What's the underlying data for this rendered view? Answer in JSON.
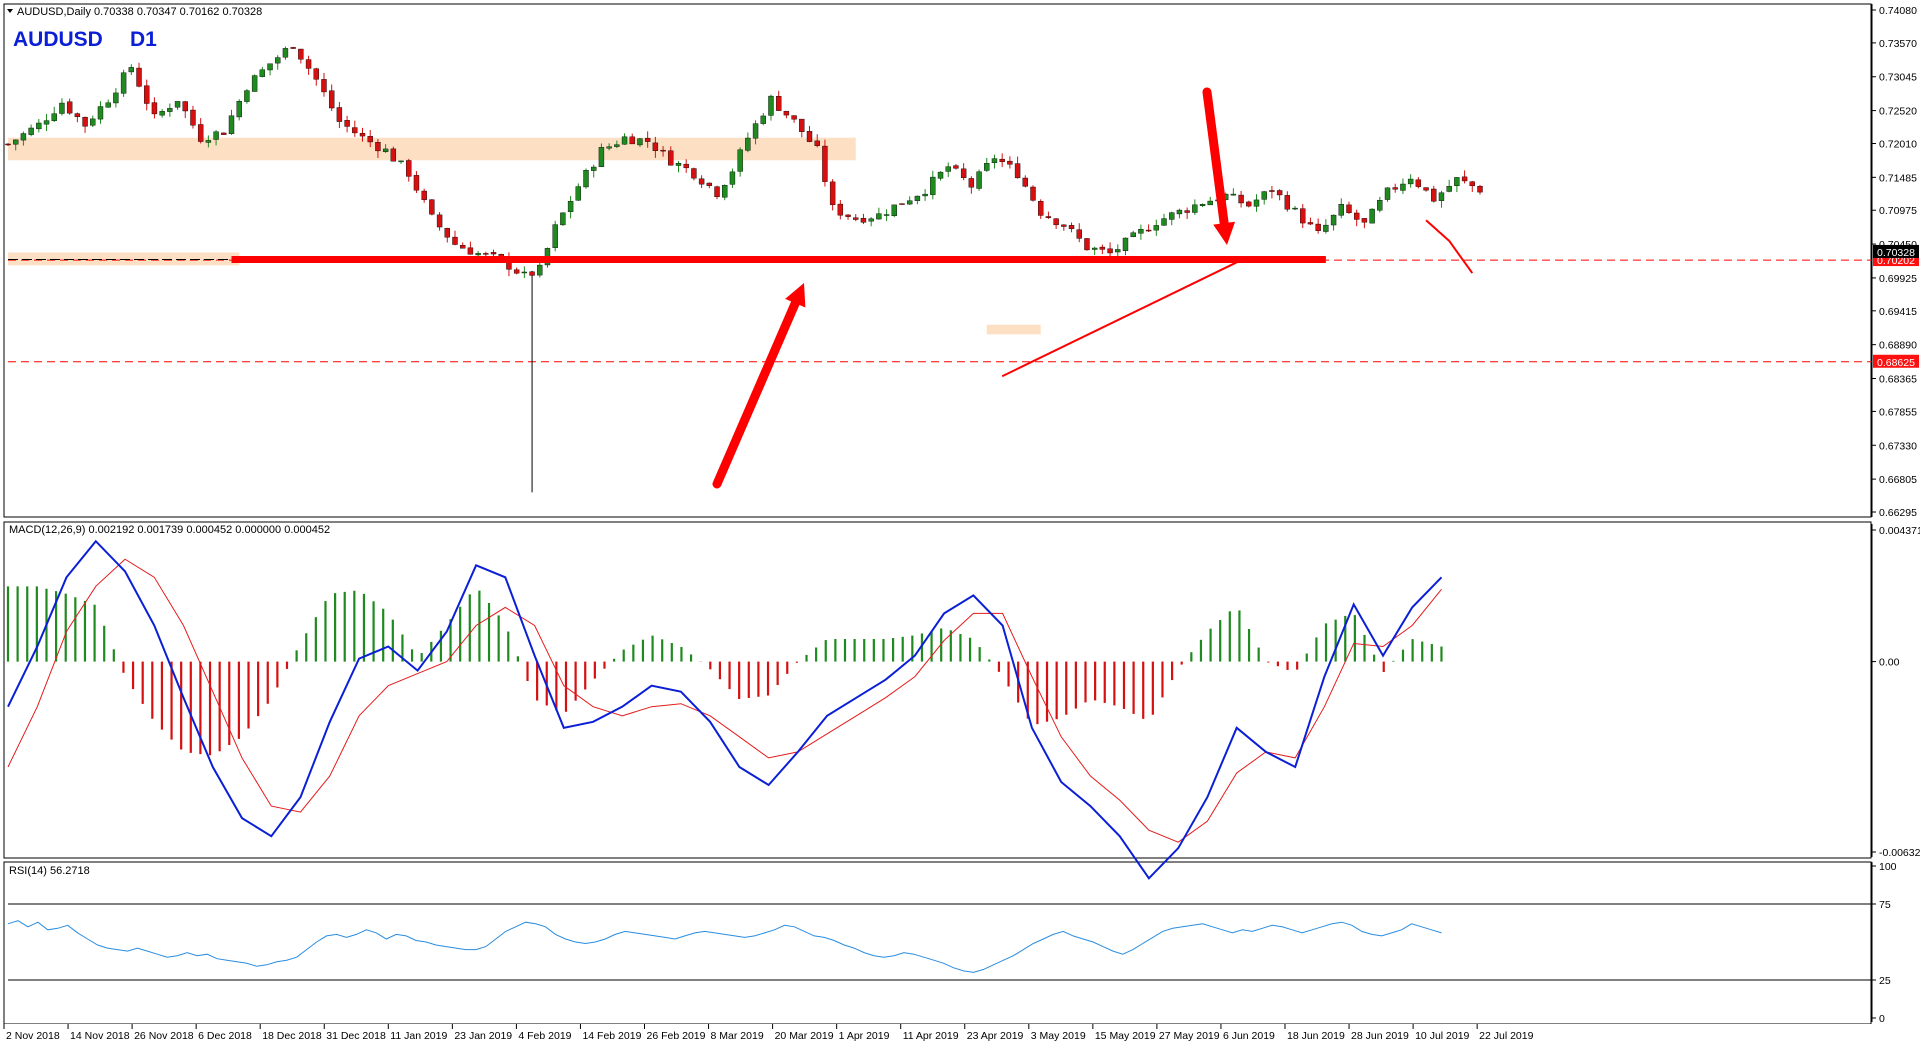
{
  "window": {
    "header": "AUDUSD,Daily  0.70338 0.70347 0.70162 0.70328",
    "symbol": "AUDUSD",
    "timeframe": "D1"
  },
  "colors": {
    "bull": "#1f8a1f",
    "bear": "#d61010",
    "macd_line": "#0a1fd6",
    "signal_line": "#e41b1b",
    "rsi_line": "#2a8de0",
    "zone": "#fde0c4",
    "level": "#ff0000"
  },
  "chart_data": [
    {
      "type": "candlestick",
      "title": "AUDUSD,Daily  0.70338 0.70347 0.70162 0.70328",
      "ylim": [
        0.66295,
        0.7408
      ],
      "y_ticks": [
        "0.74080",
        "0.73570",
        "0.73045",
        "0.72520",
        "0.72010",
        "0.71485",
        "0.70975",
        "0.70450",
        "0.69925",
        "0.69415",
        "0.68890",
        "0.68365",
        "0.67855",
        "0.67330",
        "0.66805",
        "0.66295"
      ],
      "current_price": "0.70328",
      "price_labels": [
        {
          "value": 0.70202,
          "text": "0.70202"
        },
        {
          "value": 0.68625,
          "text": "0.68625"
        }
      ],
      "x_ticks": [
        "2 Nov 2018",
        "14 Nov 2018",
        "26 Nov 2018",
        "6 Dec 2018",
        "18 Dec 2018",
        "31 Dec 2018",
        "11 Jan 2019",
        "23 Jan 2019",
        "4 Feb 2019",
        "14 Feb 2019",
        "26 Feb 2019",
        "8 Mar 2019",
        "20 Mar 2019",
        "1 Apr 2019",
        "11 Apr 2019",
        "23 Apr 2019",
        "3 May 2019",
        "15 May 2019",
        "27 May 2019",
        "6 Jun 2019",
        "18 Jun 2019",
        "28 Jun 2019",
        "10 Jul 2019",
        "22 Jul 2019"
      ],
      "x_range": [
        0,
        191
      ],
      "guide_points": [
        [
          0,
          0.72
        ],
        [
          4,
          0.723
        ],
        [
          7,
          0.7265
        ],
        [
          10,
          0.723
        ],
        [
          13,
          0.727
        ],
        [
          16,
          0.732
        ],
        [
          19,
          0.724
        ],
        [
          22,
          0.727
        ],
        [
          25,
          0.721
        ],
        [
          28,
          0.722
        ],
        [
          31,
          0.729
        ],
        [
          34,
          0.7325
        ],
        [
          37,
          0.7355
        ],
        [
          40,
          0.73
        ],
        [
          43,
          0.7235
        ],
        [
          46,
          0.721
        ],
        [
          49,
          0.719
        ],
        [
          52,
          0.7155
        ],
        [
          55,
          0.7085
        ],
        [
          58,
          0.7045
        ],
        [
          61,
          0.703
        ],
        [
          64,
          0.702
        ],
        [
          67,
          0.6995
        ],
        [
          69,
          0.7005
        ],
        [
          71,
          0.707
        ],
        [
          74,
          0.7135
        ],
        [
          77,
          0.719
        ],
        [
          80,
          0.721
        ],
        [
          83,
          0.7205
        ],
        [
          86,
          0.7175
        ],
        [
          89,
          0.7155
        ],
        [
          92,
          0.7125
        ],
        [
          94,
          0.716
        ],
        [
          96,
          0.721
        ],
        [
          99,
          0.727
        ],
        [
          102,
          0.7235
        ],
        [
          105,
          0.719
        ],
        [
          107,
          0.71
        ],
        [
          110,
          0.7085
        ],
        [
          113,
          0.709
        ],
        [
          116,
          0.711
        ],
        [
          119,
          0.713
        ],
        [
          122,
          0.7165
        ],
        [
          125,
          0.7135
        ],
        [
          128,
          0.718
        ],
        [
          131,
          0.7155
        ],
        [
          134,
          0.7095
        ],
        [
          137,
          0.7075
        ],
        [
          140,
          0.704
        ],
        [
          143,
          0.703
        ],
        [
          146,
          0.7055
        ],
        [
          149,
          0.708
        ],
        [
          152,
          0.7095
        ],
        [
          155,
          0.711
        ],
        [
          158,
          0.712
        ],
        [
          161,
          0.7105
        ],
        [
          164,
          0.713
        ],
        [
          167,
          0.7095
        ],
        [
          170,
          0.706
        ],
        [
          173,
          0.71
        ],
        [
          176,
          0.7075
        ],
        [
          179,
          0.7125
        ],
        [
          182,
          0.715
        ],
        [
          185,
          0.7115
        ],
        [
          188,
          0.7145
        ],
        [
          191,
          0.713
        ]
      ],
      "annotations": {
        "support_resistance_line": {
          "value": 0.7021,
          "x_start": 29,
          "x_end": 171
        },
        "upper_zone": [
          0.7175,
          0.721
        ],
        "lower_zone_left": [
          0.7012,
          0.7032
        ],
        "small_zone": [
          0.6905,
          0.692
        ],
        "horizontal_dashed": [
          0.70202,
          0.68625
        ],
        "trendline": [
          [
            129,
            0.684
          ],
          [
            160,
            0.702
          ]
        ],
        "arrows": [
          "up-arrow",
          "down-arrow"
        ]
      }
    },
    {
      "type": "line",
      "title": "MACD(12,26,9) 0.002192 0.001739 0.000452 0.000000 0.000452",
      "ylim": [
        -0.006325,
        0.004371
      ],
      "y_ticks": [
        "0.004371",
        "0.00",
        "-0.006325"
      ],
      "series": [
        {
          "name": "MACD",
          "values": [
            -0.0015,
            0.0005,
            0.0028,
            0.004,
            0.003,
            0.0012,
            -0.0012,
            -0.0035,
            -0.0052,
            -0.0058,
            -0.0045,
            -0.002,
            0.0001,
            0.0005,
            -0.0003,
            0.001,
            0.0032,
            0.0028,
            0.0002,
            -0.0022,
            -0.002,
            -0.0015,
            -0.0008,
            -0.001,
            -0.002,
            -0.0035,
            -0.0041,
            -0.003,
            -0.0018,
            -0.0012,
            -0.0006,
            0.0002,
            0.0016,
            0.0022,
            0.0012,
            -0.0022,
            -0.004,
            -0.0048,
            -0.0058,
            -0.0072,
            -0.0062,
            -0.0045,
            -0.0022,
            -0.003,
            -0.0035,
            -0.0005,
            0.0019,
            0.0002,
            0.0018,
            0.0028
          ]
        },
        {
          "name": "Signal",
          "values": [
            -0.0035,
            -0.0015,
            0.001,
            0.0025,
            0.0034,
            0.0028,
            0.0012,
            -0.001,
            -0.0032,
            -0.0048,
            -0.005,
            -0.0038,
            -0.0018,
            -0.0008,
            -0.0004,
            0.0,
            0.0012,
            0.0018,
            0.0012,
            -0.0008,
            -0.0015,
            -0.0018,
            -0.0015,
            -0.0014,
            -0.0018,
            -0.0025,
            -0.0032,
            -0.003,
            -0.0024,
            -0.0018,
            -0.0012,
            -0.0005,
            0.0007,
            0.0016,
            0.0016,
            -0.0005,
            -0.0025,
            -0.0038,
            -0.0046,
            -0.0056,
            -0.006,
            -0.0053,
            -0.0037,
            -0.003,
            -0.0032,
            -0.0015,
            0.0006,
            0.0005,
            0.0012,
            0.0024
          ]
        }
      ]
    },
    {
      "type": "line",
      "title": "RSI(14) 56.2718",
      "ylim": [
        0,
        100
      ],
      "y_ticks": [
        "100",
        "75",
        "25",
        "0"
      ],
      "levels": [
        75,
        25
      ],
      "series": [
        {
          "name": "RSI",
          "values": [
            62,
            64,
            60,
            63,
            58,
            59,
            61,
            56,
            52,
            48,
            46,
            45,
            44,
            46,
            44,
            42,
            40,
            41,
            43,
            41,
            42,
            39,
            38,
            37,
            36,
            34,
            35,
            37,
            38,
            40,
            45,
            50,
            54,
            55,
            53,
            55,
            58,
            56,
            52,
            55,
            54,
            51,
            50,
            48,
            47,
            46,
            45,
            45,
            47,
            52,
            57,
            60,
            63,
            62,
            60,
            55,
            52,
            50,
            49,
            50,
            52,
            55,
            57,
            56,
            55,
            54,
            53,
            52,
            54,
            56,
            57,
            56,
            55,
            54,
            53,
            54,
            56,
            58,
            61,
            60,
            57,
            54,
            53,
            51,
            48,
            46,
            43,
            41,
            40,
            41,
            43,
            42,
            40,
            38,
            36,
            33,
            31,
            30,
            32,
            35,
            38,
            41,
            45,
            49,
            52,
            55,
            57,
            54,
            52,
            50,
            47,
            44,
            42,
            45,
            49,
            53,
            57,
            59,
            60,
            61,
            62,
            60,
            58,
            56,
            58,
            57,
            59,
            61,
            60,
            58,
            56,
            58,
            60,
            62,
            63,
            61,
            57,
            55,
            54,
            56,
            58,
            62,
            60,
            58,
            56
          ]
        }
      ]
    }
  ]
}
